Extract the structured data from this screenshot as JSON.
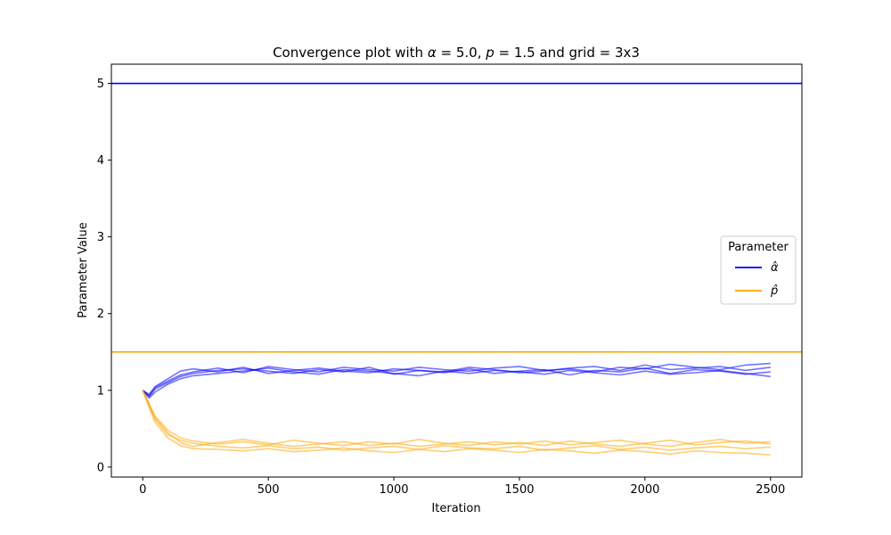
{
  "chart_data": {
    "type": "line",
    "title_parts": {
      "prefix": "Convergence plot with ",
      "alpha_symbol": "α",
      "alpha_text": " = 5.0, ",
      "p_symbol": "p",
      "p_text": " = 1.5 and grid = 3x3"
    },
    "xlabel": "Iteration",
    "ylabel": "Parameter Value",
    "xlim": [
      -125,
      2625
    ],
    "ylim": [
      -0.13,
      5.25
    ],
    "xticks": [
      0,
      500,
      1000,
      1500,
      2000,
      2500
    ],
    "yticks": [
      0,
      1,
      2,
      3,
      4,
      5
    ],
    "grid": false,
    "legend": {
      "title": "Parameter",
      "placement": "center-right",
      "entries": [
        {
          "label": "α̂",
          "color": "#0000ff"
        },
        {
          "label": "p̂",
          "color": "#ffa500"
        }
      ]
    },
    "reference_lines": [
      {
        "value": 5.0,
        "color": "#0000ff"
      },
      {
        "value": 1.5,
        "color": "#ffa500"
      }
    ],
    "series": [
      {
        "group": "alpha",
        "color": "#0000ff",
        "x": [
          0,
          25,
          50,
          100,
          150,
          200,
          300,
          400,
          500,
          600,
          700,
          800,
          900,
          1000,
          1100,
          1200,
          1300,
          1400,
          1500,
          1600,
          1700,
          1800,
          1900,
          2000,
          2100,
          2200,
          2300,
          2400,
          2500
        ],
        "y": [
          1.0,
          0.92,
          1.02,
          1.1,
          1.18,
          1.22,
          1.26,
          1.28,
          1.25,
          1.22,
          1.27,
          1.24,
          1.3,
          1.21,
          1.26,
          1.23,
          1.28,
          1.22,
          1.25,
          1.27,
          1.2,
          1.26,
          1.24,
          1.29,
          1.22,
          1.27,
          1.25,
          1.21,
          1.24
        ]
      },
      {
        "group": "alpha",
        "color": "#0000ff",
        "x": [
          0,
          25,
          50,
          100,
          150,
          200,
          300,
          400,
          500,
          600,
          700,
          800,
          900,
          1000,
          1100,
          1200,
          1300,
          1400,
          1500,
          1600,
          1700,
          1800,
          1900,
          2000,
          2100,
          2200,
          2300,
          2400,
          2500
        ],
        "y": [
          1.0,
          0.95,
          1.05,
          1.15,
          1.25,
          1.28,
          1.24,
          1.3,
          1.22,
          1.26,
          1.29,
          1.25,
          1.23,
          1.28,
          1.26,
          1.24,
          1.3,
          1.27,
          1.23,
          1.25,
          1.29,
          1.31,
          1.26,
          1.33,
          1.27,
          1.29,
          1.31,
          1.26,
          1.3
        ]
      },
      {
        "group": "alpha",
        "color": "#0000ff",
        "x": [
          0,
          25,
          50,
          100,
          150,
          200,
          300,
          400,
          500,
          600,
          700,
          800,
          900,
          1000,
          1100,
          1200,
          1300,
          1400,
          1500,
          1600,
          1700,
          1800,
          1900,
          2000,
          2100,
          2200,
          2300,
          2400,
          2500
        ],
        "y": [
          1.0,
          0.9,
          0.98,
          1.08,
          1.15,
          1.19,
          1.22,
          1.25,
          1.29,
          1.24,
          1.21,
          1.27,
          1.25,
          1.22,
          1.19,
          1.25,
          1.22,
          1.26,
          1.24,
          1.21,
          1.26,
          1.23,
          1.2,
          1.25,
          1.21,
          1.23,
          1.26,
          1.22,
          1.18
        ]
      },
      {
        "group": "alpha",
        "color": "#0000ff",
        "x": [
          0,
          25,
          50,
          100,
          150,
          200,
          300,
          400,
          500,
          600,
          700,
          800,
          900,
          1000,
          1100,
          1200,
          1300,
          1400,
          1500,
          1600,
          1700,
          1800,
          1900,
          2000,
          2100,
          2200,
          2300,
          2400,
          2500
        ],
        "y": [
          1.0,
          0.93,
          1.04,
          1.12,
          1.2,
          1.24,
          1.29,
          1.23,
          1.31,
          1.27,
          1.24,
          1.3,
          1.27,
          1.25,
          1.3,
          1.27,
          1.25,
          1.29,
          1.31,
          1.26,
          1.28,
          1.24,
          1.3,
          1.28,
          1.34,
          1.3,
          1.27,
          1.33,
          1.35
        ]
      },
      {
        "group": "p",
        "color": "#ffa500",
        "x": [
          0,
          25,
          50,
          100,
          150,
          200,
          300,
          400,
          500,
          600,
          700,
          800,
          900,
          1000,
          1100,
          1200,
          1300,
          1400,
          1500,
          1600,
          1700,
          1800,
          1900,
          2000,
          2100,
          2200,
          2300,
          2400,
          2500
        ],
        "y": [
          1.0,
          0.8,
          0.62,
          0.42,
          0.35,
          0.31,
          0.27,
          0.25,
          0.28,
          0.24,
          0.26,
          0.22,
          0.25,
          0.27,
          0.23,
          0.28,
          0.25,
          0.24,
          0.27,
          0.22,
          0.25,
          0.28,
          0.23,
          0.26,
          0.22,
          0.25,
          0.27,
          0.24,
          0.26
        ]
      },
      {
        "group": "p",
        "color": "#ffa500",
        "x": [
          0,
          25,
          50,
          100,
          150,
          200,
          300,
          400,
          500,
          600,
          700,
          800,
          900,
          1000,
          1100,
          1200,
          1300,
          1400,
          1500,
          1600,
          1700,
          1800,
          1900,
          2000,
          2100,
          2200,
          2300,
          2400,
          2500
        ],
        "y": [
          1.0,
          0.83,
          0.66,
          0.48,
          0.38,
          0.34,
          0.3,
          0.33,
          0.29,
          0.35,
          0.31,
          0.28,
          0.33,
          0.3,
          0.36,
          0.31,
          0.28,
          0.33,
          0.3,
          0.34,
          0.29,
          0.32,
          0.35,
          0.3,
          0.27,
          0.32,
          0.36,
          0.31,
          0.33
        ]
      },
      {
        "group": "p",
        "color": "#ffa500",
        "x": [
          0,
          25,
          50,
          100,
          150,
          200,
          300,
          400,
          500,
          600,
          700,
          800,
          900,
          1000,
          1100,
          1200,
          1300,
          1400,
          1500,
          1600,
          1700,
          1800,
          1900,
          2000,
          2100,
          2200,
          2300,
          2400,
          2500
        ],
        "y": [
          1.0,
          0.78,
          0.58,
          0.38,
          0.28,
          0.24,
          0.23,
          0.21,
          0.24,
          0.2,
          0.22,
          0.25,
          0.21,
          0.19,
          0.23,
          0.2,
          0.24,
          0.22,
          0.19,
          0.23,
          0.21,
          0.18,
          0.22,
          0.2,
          0.17,
          0.21,
          0.19,
          0.18,
          0.16
        ]
      },
      {
        "group": "p",
        "color": "#ffa500",
        "x": [
          0,
          25,
          50,
          100,
          150,
          200,
          300,
          400,
          500,
          600,
          700,
          800,
          900,
          1000,
          1100,
          1200,
          1300,
          1400,
          1500,
          1600,
          1700,
          1800,
          1900,
          2000,
          2100,
          2200,
          2300,
          2400,
          2500
        ],
        "y": [
          1.0,
          0.81,
          0.64,
          0.45,
          0.32,
          0.27,
          0.32,
          0.36,
          0.31,
          0.27,
          0.3,
          0.33,
          0.28,
          0.31,
          0.27,
          0.3,
          0.33,
          0.29,
          0.32,
          0.28,
          0.34,
          0.3,
          0.27,
          0.31,
          0.35,
          0.29,
          0.32,
          0.34,
          0.3
        ]
      }
    ]
  }
}
